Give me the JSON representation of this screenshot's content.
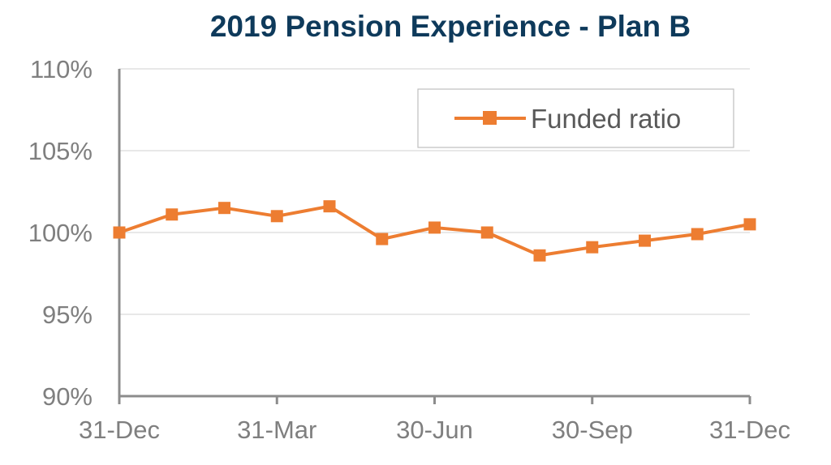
{
  "chart_data": {
    "type": "line",
    "title": "2019 Pension Experience - Plan B",
    "xlabel": "",
    "ylabel": "",
    "ylim": [
      90,
      110
    ],
    "y_ticks": [
      90,
      95,
      100,
      105,
      110
    ],
    "y_tick_labels": [
      "90%",
      "95%",
      "100%",
      "105%",
      "110%"
    ],
    "x_tick_labels": [
      "31-Dec",
      "31-Mar",
      "30-Jun",
      "30-Sep",
      "31-Dec"
    ],
    "x_tick_indices": [
      0,
      3,
      6,
      9,
      12
    ],
    "grid": "horizontal",
    "legend_position": "top-right",
    "series": [
      {
        "name": "Funded ratio",
        "color": "#ed7d31",
        "marker": "square",
        "values": [
          100.0,
          101.1,
          101.5,
          101.0,
          101.6,
          99.6,
          100.3,
          100.0,
          98.6,
          99.1,
          99.5,
          99.9,
          100.5
        ]
      }
    ]
  }
}
